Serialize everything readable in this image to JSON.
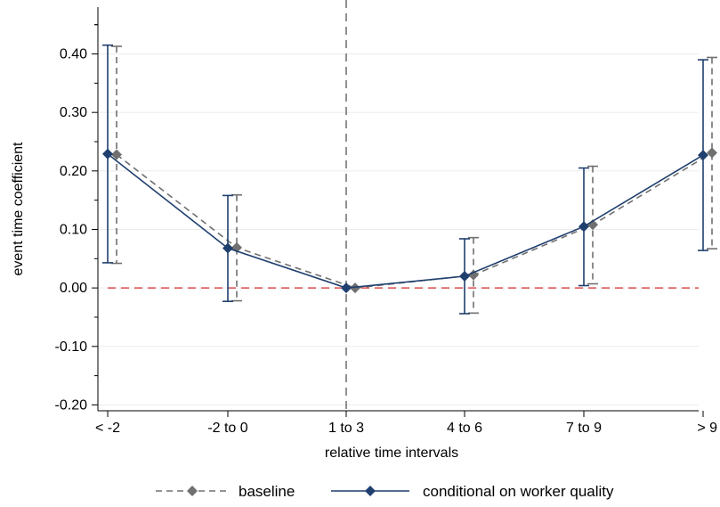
{
  "chart_data": {
    "type": "line",
    "title": "",
    "xlabel": "relative time intervals",
    "ylabel": "event time coefficient",
    "categories": [
      "< -2",
      "-2 to 0",
      "1 to 3",
      "4 to 6",
      "7 to 9",
      "> 9"
    ],
    "ylim": [
      -0.2,
      0.45
    ],
    "yticks": [
      -0.2,
      -0.1,
      0.0,
      0.1,
      0.2,
      0.3,
      0.4
    ],
    "ytick_labels": [
      "-0.20",
      "-0.10",
      "0.00",
      "0.10",
      "0.20",
      "0.30",
      "0.40"
    ],
    "grid": true,
    "reference_lines": {
      "horizontal_y": 0.0,
      "vertical_at_category": "1 to 3"
    },
    "legend_position": "bottom",
    "series": [
      {
        "name": "baseline",
        "line_style": "dashed",
        "color": "#707070",
        "marker_color": "#707070",
        "marker": "diamond",
        "values": [
          0.228,
          0.069,
          0.0,
          0.022,
          0.108,
          0.231
        ],
        "ci_lower": [
          0.042,
          -0.022,
          0.0,
          -0.043,
          0.007,
          0.067
        ],
        "ci_upper": [
          0.413,
          0.159,
          0.0,
          0.086,
          0.208,
          0.394
        ]
      },
      {
        "name": "conditional on worker quality",
        "line_style": "solid",
        "color": "#1f3f6e",
        "marker_color": "#1f3f6e",
        "marker": "diamond",
        "values": [
          0.229,
          0.068,
          0.0,
          0.02,
          0.105,
          0.227
        ],
        "ci_lower": [
          0.043,
          -0.023,
          0.0,
          -0.044,
          0.004,
          0.064
        ],
        "ci_upper": [
          0.415,
          0.158,
          0.0,
          0.084,
          0.205,
          0.39
        ]
      }
    ]
  },
  "colors": {
    "grid": "#ebebeb",
    "zero_line": "#d62728",
    "vertical_line": "#555555",
    "axis": "#000000"
  }
}
